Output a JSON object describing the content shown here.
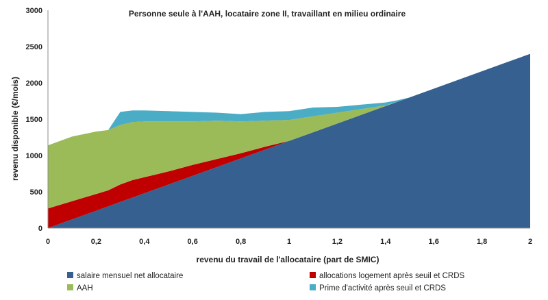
{
  "chart_data": {
    "type": "area",
    "stacked": true,
    "title": "Personne seule à l'AAH, locataire zone II,  travaillant  en milieu ordinaire",
    "xlabel": "revenu du travail de l'allocataire  (part de SMIC)",
    "ylabel": "revenu disponible (€/mois)",
    "xlim": [
      0,
      2
    ],
    "ylim": [
      0,
      3000
    ],
    "x_ticks": [
      "0",
      "0,2",
      "0,4",
      "0,6",
      "0,8",
      "1",
      "1,2",
      "1,4",
      "1,6",
      "1,8",
      "2"
    ],
    "y_ticks": [
      "0",
      "500",
      "1000",
      "1500",
      "2000",
      "2500",
      "3000"
    ],
    "grid": false,
    "legend_position": "bottom",
    "x": [
      0,
      0.1,
      0.2,
      0.25,
      0.3,
      0.35,
      0.4,
      0.5,
      0.6,
      0.7,
      0.8,
      0.9,
      1.0,
      1.1,
      1.2,
      1.3,
      1.4,
      1.45,
      1.5,
      1.6,
      1.7,
      1.8,
      1.9,
      2.0
    ],
    "series": [
      {
        "name": "salaire mensuel net allocataire",
        "color": "#36608f",
        "values": [
          0,
          120,
          240,
          300,
          360,
          420,
          480,
          600,
          720,
          840,
          960,
          1080,
          1200,
          1320,
          1440,
          1560,
          1680,
          1740,
          1800,
          1920,
          2040,
          2160,
          2280,
          2400
        ]
      },
      {
        "name": "allocations logement après seuil et CRDS",
        "color": "#c00000",
        "values": [
          270,
          250,
          230,
          220,
          240,
          240,
          220,
          180,
          150,
          110,
          70,
          40,
          0,
          0,
          0,
          0,
          0,
          0,
          0,
          0,
          0,
          0,
          0,
          0
        ]
      },
      {
        "name": "AAH",
        "color": "#9bbb59",
        "values": [
          870,
          890,
          860,
          830,
          820,
          800,
          770,
          690,
          600,
          530,
          440,
          360,
          290,
          220,
          150,
          80,
          10,
          0,
          0,
          0,
          0,
          0,
          0,
          0
        ]
      },
      {
        "name": "Prime d'activité après seuil et CRDS",
        "color": "#4bacc6",
        "values": [
          0,
          0,
          0,
          0,
          180,
          160,
          150,
          140,
          130,
          110,
          100,
          120,
          120,
          120,
          80,
          60,
          40,
          20,
          0,
          0,
          0,
          0,
          0,
          0
        ]
      }
    ]
  }
}
